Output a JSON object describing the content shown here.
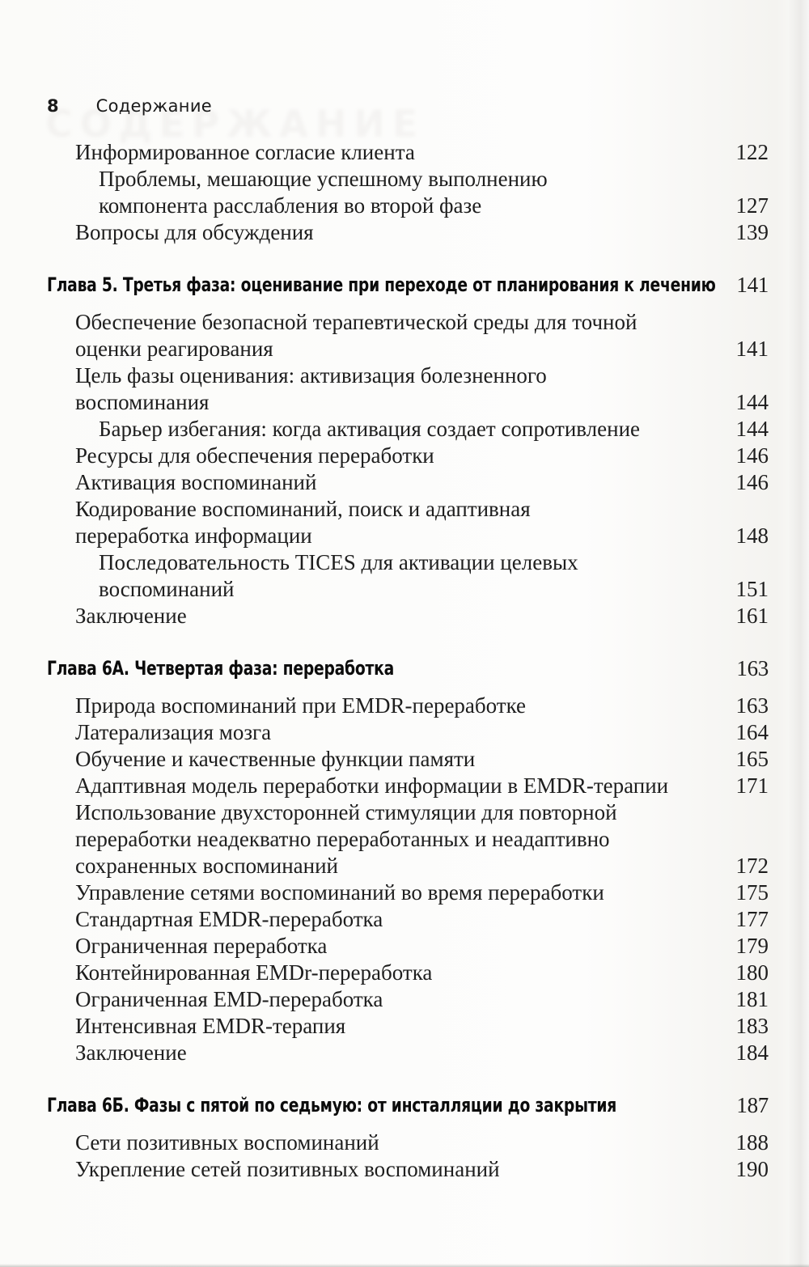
{
  "page_header": {
    "page_number": "8",
    "title": "Содержание"
  },
  "artifacts": {
    "show_through_text": "СОДЕРЖАНИЕ"
  },
  "toc": {
    "rows": [
      {
        "type": "entry",
        "level": 1,
        "title": "Информированное согласие клиента",
        "page": "122"
      },
      {
        "type": "entry",
        "level": 2,
        "title": "Проблемы, мешающие успешному выполнению\nкомпонента расслабления во второй фазе",
        "page": "127"
      },
      {
        "type": "entry",
        "level": 1,
        "title": "Вопросы для обсуждения",
        "page": "139"
      },
      {
        "type": "chapter",
        "title": "Глава 5. Третья фаза: оценивание при переходе от планирования к лечению",
        "page": "141"
      },
      {
        "type": "entry",
        "level": 1,
        "title": "Обеспечение безопасной терапевтической среды для точной\nоценки реагирования",
        "page": "141"
      },
      {
        "type": "entry",
        "level": 1,
        "title": "Цель фазы оценивания: активизация болезненного\nвоспоминания",
        "page": "144"
      },
      {
        "type": "entry",
        "level": 2,
        "title": "Барьер избегания: когда активация создает сопротивление",
        "page": "144"
      },
      {
        "type": "entry",
        "level": 1,
        "title": "Ресурсы для обеспечения переработки",
        "page": "146"
      },
      {
        "type": "entry",
        "level": 1,
        "title": "Активация воспоминаний",
        "page": "146"
      },
      {
        "type": "entry",
        "level": 1,
        "title": "Кодирование воспоминаний, поиск и адаптивная\nпереработка информации",
        "page": "148"
      },
      {
        "type": "entry",
        "level": 2,
        "title": "Последовательность TICES для активации целевых\nвоспоминаний",
        "page": "151"
      },
      {
        "type": "entry",
        "level": 1,
        "title": "Заключение",
        "page": "161"
      },
      {
        "type": "chapter",
        "title": "Глава 6А. Четвертая фаза: переработка",
        "page": "163"
      },
      {
        "type": "entry",
        "level": 1,
        "title": "Природа воспоминаний при EMDR-переработке",
        "page": "163"
      },
      {
        "type": "entry",
        "level": 1,
        "title": "Латерализация мозга",
        "page": "164"
      },
      {
        "type": "entry",
        "level": 1,
        "title": "Обучение и качественные функции памяти",
        "page": "165"
      },
      {
        "type": "entry",
        "level": 1,
        "title": "Адаптивная модель переработки информации в EMDR-терапии",
        "page": "171"
      },
      {
        "type": "entry",
        "level": 1,
        "title": "Использование двухсторонней стимуляции для повторной\nпереработки неадекватно переработанных и неадаптивно\nсохраненных воспоминаний",
        "page": "172"
      },
      {
        "type": "entry",
        "level": 1,
        "title": "Управление сетями воспоминаний во время переработки",
        "page": "175"
      },
      {
        "type": "entry",
        "level": 1,
        "title": "Стандартная EMDR-переработка",
        "page": "177"
      },
      {
        "type": "entry",
        "level": 1,
        "title": "Ограниченная переработка",
        "page": "179"
      },
      {
        "type": "entry",
        "level": 1,
        "title": "Контейнированная EMDr-переработка",
        "page": "180"
      },
      {
        "type": "entry",
        "level": 1,
        "title": "Ограниченная EMD-переработка",
        "page": "181"
      },
      {
        "type": "entry",
        "level": 1,
        "title": "Интенсивная EMDR-терапия",
        "page": "183"
      },
      {
        "type": "entry",
        "level": 1,
        "title": "Заключение",
        "page": "184"
      },
      {
        "type": "chapter",
        "title": "Глава 6Б. Фазы с пятой по седьмую: от инсталляции до закрытия",
        "page": "187"
      },
      {
        "type": "entry",
        "level": 1,
        "title": "Сети позитивных воспоминаний",
        "page": "188"
      },
      {
        "type": "entry",
        "level": 1,
        "title": "Укрепление сетей позитивных воспоминаний",
        "page": "190"
      }
    ]
  }
}
